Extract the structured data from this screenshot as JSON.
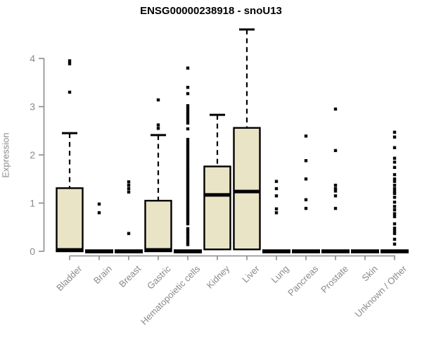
{
  "chart_data": {
    "type": "boxplot",
    "title": "ENSG00000238918 - snoU13",
    "ylabel": "Expression",
    "xlabel": "",
    "ylim": [
      0,
      4.65
    ],
    "yticks": [
      0,
      1,
      2,
      3,
      4
    ],
    "grid": false,
    "legend": "none",
    "colors": {
      "box_fill": "#EAE4C6",
      "box_stroke": "#000000",
      "median": "#000000",
      "outlier": "#0a0a0a",
      "axis": "#8a8a8a",
      "tick_text": "#8a8a8a",
      "title_text": "#000000"
    },
    "categories": [
      {
        "label": "Bladder",
        "whisker_low": 0,
        "q1": 0,
        "median": 0.03,
        "q3": 1.31,
        "whisker_high": 2.45,
        "outliers": [
          3.3,
          3.89,
          3.95
        ]
      },
      {
        "label": "Brain",
        "whisker_low": 0,
        "q1": 0,
        "median": 0,
        "q3": 0,
        "whisker_high": 0,
        "outliers": [
          0.8,
          0.98
        ]
      },
      {
        "label": "Breast",
        "whisker_low": 0,
        "q1": 0,
        "median": 0,
        "q3": 0,
        "whisker_high": 0,
        "outliers": [
          0.37,
          1.23,
          1.3,
          1.37,
          1.44
        ]
      },
      {
        "label": "Gastric",
        "whisker_low": 0,
        "q1": 0,
        "median": 0.03,
        "q3": 1.05,
        "whisker_high": 2.41,
        "outliers": [
          2.55,
          2.62,
          3.14
        ]
      },
      {
        "label": "Hematopoietic cells",
        "whisker_low": 0,
        "q1": 0,
        "median": 0,
        "q3": 0,
        "whisker_high": 0,
        "outliers": [
          0.14,
          0.19,
          0.25,
          0.31,
          0.37,
          0.42,
          0.47,
          0.57,
          0.62,
          0.67,
          0.72,
          0.77,
          0.82,
          0.87,
          0.92,
          0.97,
          1.02,
          1.07,
          1.12,
          1.17,
          1.22,
          1.27,
          1.32,
          1.37,
          1.42,
          1.47,
          1.52,
          1.57,
          1.62,
          1.67,
          1.72,
          1.78,
          1.84,
          1.9,
          1.96,
          2.02,
          2.08,
          2.14,
          2.2,
          2.26,
          2.32,
          2.54,
          2.66,
          2.72,
          2.78,
          2.84,
          2.9,
          2.96,
          3.02,
          3.27,
          3.4,
          3.8
        ]
      },
      {
        "label": "Kidney",
        "whisker_low": 0.04,
        "q1": 0.04,
        "median": 1.17,
        "q3": 1.76,
        "whisker_high": 2.83,
        "outliers": []
      },
      {
        "label": "Liver",
        "whisker_low": 0.04,
        "q1": 0.04,
        "median": 1.24,
        "q3": 2.56,
        "whisker_high": 4.6,
        "outliers": []
      },
      {
        "label": "Lung",
        "whisker_low": 0,
        "q1": 0,
        "median": 0,
        "q3": 0,
        "whisker_high": 0,
        "outliers": [
          0.8,
          0.88,
          1.15,
          1.3,
          1.45
        ]
      },
      {
        "label": "Pancreas",
        "whisker_low": 0,
        "q1": 0,
        "median": 0,
        "q3": 0,
        "whisker_high": 0,
        "outliers": [
          0.89,
          1.07,
          1.5,
          1.88,
          2.39
        ]
      },
      {
        "label": "Prostate",
        "whisker_low": 0,
        "q1": 0,
        "median": 0,
        "q3": 0,
        "whisker_high": 0,
        "outliers": [
          0.89,
          1.15,
          1.25,
          1.3,
          1.37,
          2.09,
          2.95
        ]
      },
      {
        "label": "Skin",
        "whisker_low": 0,
        "q1": 0,
        "median": 0,
        "q3": 0,
        "whisker_high": 0,
        "outliers": []
      },
      {
        "label": "Unknown / Other",
        "whisker_low": 0,
        "q1": 0,
        "median": 0,
        "q3": 0,
        "whisker_high": 0,
        "outliers": [
          0.15,
          0.25,
          0.37,
          0.42,
          0.48,
          0.57,
          0.72,
          0.78,
          0.86,
          0.93,
          1.02,
          1.12,
          1.2,
          1.24,
          1.3,
          1.37,
          1.45,
          1.5,
          1.59,
          1.74,
          1.85,
          1.93,
          2.15,
          2.37,
          2.47
        ]
      }
    ]
  }
}
